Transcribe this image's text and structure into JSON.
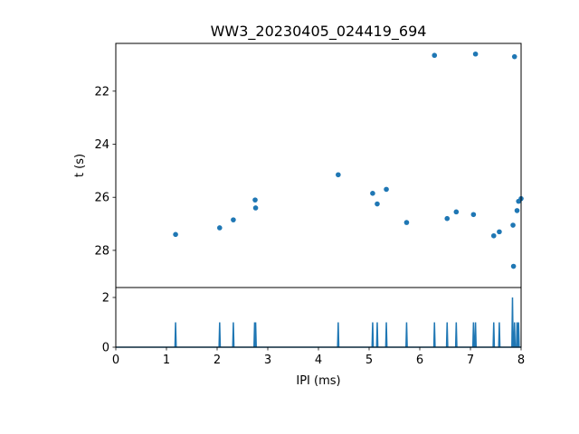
{
  "chart_data": [
    {
      "type": "scatter",
      "title": "WW3_20230405_024419_694",
      "ylabel": "t (s)",
      "xlabel": "",
      "xlim": [
        0,
        8
      ],
      "ylim": [
        29.4,
        20.2
      ],
      "y_inverted": true,
      "yticks": [
        22,
        24,
        26,
        28
      ],
      "color": "#1f77b4",
      "points": [
        {
          "x": 1.18,
          "y": 27.4
        },
        {
          "x": 2.05,
          "y": 27.15
        },
        {
          "x": 2.32,
          "y": 26.85
        },
        {
          "x": 2.75,
          "y": 26.1
        },
        {
          "x": 2.76,
          "y": 26.4
        },
        {
          "x": 4.39,
          "y": 25.15
        },
        {
          "x": 5.07,
          "y": 25.85
        },
        {
          "x": 5.16,
          "y": 26.25
        },
        {
          "x": 5.34,
          "y": 25.7
        },
        {
          "x": 5.74,
          "y": 26.95
        },
        {
          "x": 6.29,
          "y": 20.65
        },
        {
          "x": 6.54,
          "y": 26.8
        },
        {
          "x": 6.72,
          "y": 26.55
        },
        {
          "x": 7.06,
          "y": 26.65
        },
        {
          "x": 7.1,
          "y": 20.6
        },
        {
          "x": 7.46,
          "y": 27.45
        },
        {
          "x": 7.57,
          "y": 27.3
        },
        {
          "x": 7.84,
          "y": 27.05
        },
        {
          "x": 7.85,
          "y": 28.6
        },
        {
          "x": 7.87,
          "y": 20.7
        },
        {
          "x": 7.92,
          "y": 26.5
        },
        {
          "x": 7.95,
          "y": 26.15
        },
        {
          "x": 8.0,
          "y": 26.05
        }
      ]
    },
    {
      "type": "line",
      "title": "",
      "xlabel": "IPI (ms)",
      "ylabel": "",
      "xlim": [
        0,
        8
      ],
      "ylim": [
        0,
        2.4
      ],
      "xticks": [
        0,
        1,
        2,
        3,
        4,
        5,
        6,
        7,
        8
      ],
      "yticks": [
        0,
        2
      ],
      "color": "#1f77b4",
      "spikes": [
        {
          "x": 1.18,
          "y": 1
        },
        {
          "x": 2.05,
          "y": 1
        },
        {
          "x": 2.32,
          "y": 1
        },
        {
          "x": 2.74,
          "y": 1
        },
        {
          "x": 2.76,
          "y": 1
        },
        {
          "x": 4.39,
          "y": 1
        },
        {
          "x": 5.07,
          "y": 1
        },
        {
          "x": 5.16,
          "y": 1
        },
        {
          "x": 5.34,
          "y": 1
        },
        {
          "x": 5.74,
          "y": 1
        },
        {
          "x": 6.29,
          "y": 1
        },
        {
          "x": 6.54,
          "y": 1
        },
        {
          "x": 6.72,
          "y": 1
        },
        {
          "x": 7.06,
          "y": 1
        },
        {
          "x": 7.1,
          "y": 1
        },
        {
          "x": 7.46,
          "y": 1
        },
        {
          "x": 7.57,
          "y": 1
        },
        {
          "x": 7.83,
          "y": 2
        },
        {
          "x": 7.87,
          "y": 1
        },
        {
          "x": 7.92,
          "y": 1
        },
        {
          "x": 7.95,
          "y": 1
        }
      ]
    }
  ]
}
